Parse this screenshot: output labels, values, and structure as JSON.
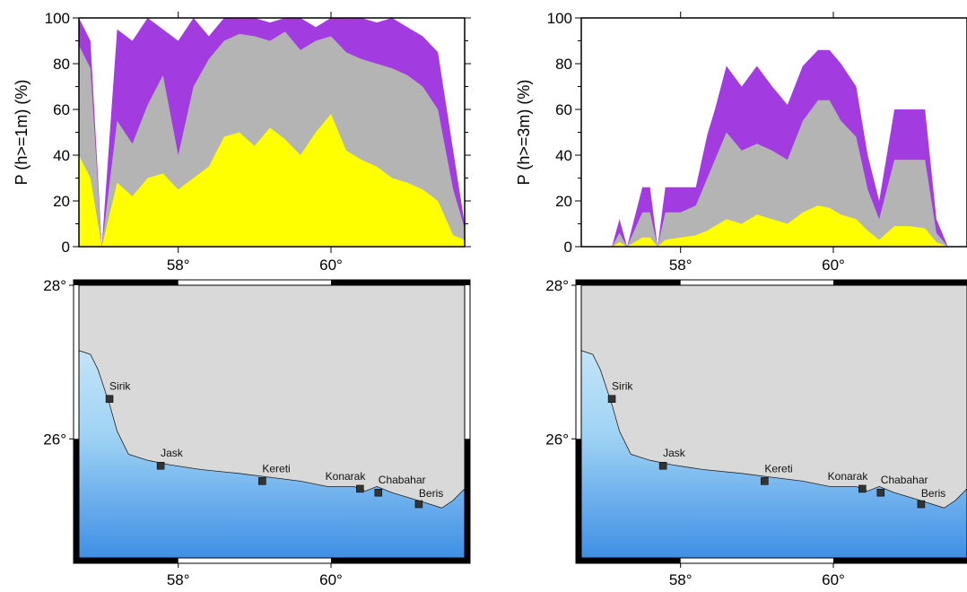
{
  "colors": {
    "purple": "#a23be0",
    "gray": "#b4b4b4",
    "yellow": "#ffff00",
    "land": "#d9d9d9",
    "sea_shallow": "#dff1fb",
    "sea_mid": "#9fd3f4",
    "sea_deep": "#3f8fe6",
    "frame": "#000000"
  },
  "chart_data": [
    {
      "type": "area",
      "ylabel": "P (h>=1m) (%)",
      "xlim": [
        56.7,
        61.75
      ],
      "ylim": [
        0,
        100
      ],
      "yticks": [
        0,
        20,
        40,
        60,
        80,
        100
      ],
      "ytick_labels": [
        "0",
        "20",
        "40",
        "60",
        "80",
        "100"
      ],
      "xticks": [
        58,
        60
      ],
      "xtick_labels": [
        "58°",
        "60°"
      ],
      "x": [
        56.7,
        56.85,
        57.0,
        57.2,
        57.4,
        57.6,
        57.8,
        58.0,
        58.2,
        58.4,
        58.6,
        58.8,
        59.0,
        59.2,
        59.4,
        59.6,
        59.8,
        60.0,
        60.2,
        60.4,
        60.6,
        60.8,
        61.0,
        61.2,
        61.4,
        61.6,
        61.75
      ],
      "series": [
        {
          "values": [
            100,
            90,
            0,
            95,
            90,
            100,
            95,
            90,
            100,
            92,
            100,
            100,
            100,
            98,
            100,
            100,
            96,
            100,
            100,
            100,
            98,
            100,
            96,
            92,
            85,
            42,
            10
          ]
        },
        {
          "values": [
            88,
            78,
            0,
            55,
            45,
            62,
            75,
            40,
            70,
            82,
            90,
            93,
            92,
            90,
            94,
            86,
            90,
            92,
            85,
            82,
            80,
            78,
            75,
            70,
            60,
            25,
            8
          ]
        },
        {
          "values": [
            40,
            30,
            0,
            28,
            22,
            30,
            32,
            25,
            30,
            35,
            48,
            50,
            44,
            52,
            47,
            40,
            50,
            58,
            42,
            38,
            35,
            30,
            28,
            25,
            20,
            5,
            3
          ]
        }
      ]
    },
    {
      "type": "area",
      "ylabel": "P (h>=3m) (%)",
      "xlim": [
        56.7,
        61.75
      ],
      "ylim": [
        0,
        100
      ],
      "yticks": [
        0,
        20,
        40,
        60,
        80,
        100
      ],
      "ytick_labels": [
        "0",
        "20",
        "40",
        "60",
        "80",
        "100"
      ],
      "xticks": [
        58,
        60
      ],
      "xtick_labels": [
        "58°",
        "60°"
      ],
      "x": [
        56.7,
        57.0,
        57.1,
        57.2,
        57.3,
        57.5,
        57.6,
        57.7,
        57.8,
        58.0,
        58.2,
        58.35,
        58.45,
        58.6,
        58.8,
        59.0,
        59.2,
        59.4,
        59.6,
        59.8,
        59.95,
        60.1,
        60.3,
        60.45,
        60.6,
        60.8,
        61.0,
        61.2,
        61.35,
        61.5,
        61.75
      ],
      "series": [
        {
          "values": [
            0,
            0,
            0,
            12,
            0,
            26,
            26,
            0,
            26,
            26,
            26,
            49,
            60,
            79,
            70,
            79,
            70,
            62,
            79,
            86,
            86,
            80,
            70,
            40,
            20,
            60,
            60,
            60,
            12,
            0,
            0
          ]
        },
        {
          "values": [
            0,
            0,
            0,
            6,
            0,
            15,
            15,
            0,
            15,
            15,
            18,
            30,
            38,
            50,
            42,
            45,
            42,
            38,
            55,
            64,
            64,
            55,
            48,
            25,
            12,
            38,
            38,
            38,
            6,
            0,
            0
          ]
        },
        {
          "values": [
            0,
            0,
            0,
            2,
            0,
            4,
            4,
            0,
            3,
            4,
            5,
            7,
            9,
            12,
            10,
            14,
            12,
            10,
            15,
            18,
            17,
            14,
            12,
            7,
            3,
            9,
            9,
            8,
            2,
            0,
            0
          ]
        }
      ]
    },
    {
      "type": "map",
      "xlim": [
        56.7,
        61.75
      ],
      "ylim": [
        24.45,
        28.0
      ],
      "xticks": [
        58,
        60
      ],
      "xtick_labels": [
        "58°",
        "60°"
      ],
      "yticks": [
        26,
        28
      ],
      "ytick_labels": [
        "26°",
        "28°"
      ],
      "cities": [
        {
          "name": "Sirik",
          "lon": 57.1,
          "lat": 26.52
        },
        {
          "name": "Jask",
          "lon": 57.77,
          "lat": 25.65
        },
        {
          "name": "Kereti",
          "lon": 59.1,
          "lat": 25.45
        },
        {
          "name": "Konarak",
          "lon": 60.38,
          "lat": 25.35
        },
        {
          "name": "Chabahar",
          "lon": 60.62,
          "lat": 25.3
        },
        {
          "name": "Beris",
          "lon": 61.15,
          "lat": 25.15
        }
      ]
    },
    {
      "type": "map",
      "xlim": [
        56.7,
        61.75
      ],
      "ylim": [
        24.45,
        28.0
      ],
      "xticks": [
        58,
        60
      ],
      "xtick_labels": [
        "58°",
        "60°"
      ],
      "yticks": [
        26,
        28
      ],
      "ytick_labels": [
        "26°",
        "28°"
      ],
      "cities": [
        {
          "name": "Sirik",
          "lon": 57.1,
          "lat": 26.52
        },
        {
          "name": "Jask",
          "lon": 57.77,
          "lat": 25.65
        },
        {
          "name": "Kereti",
          "lon": 59.1,
          "lat": 25.45
        },
        {
          "name": "Konarak",
          "lon": 60.38,
          "lat": 25.35
        },
        {
          "name": "Chabahar",
          "lon": 60.62,
          "lat": 25.3
        },
        {
          "name": "Beris",
          "lon": 61.15,
          "lat": 25.15
        }
      ]
    }
  ]
}
